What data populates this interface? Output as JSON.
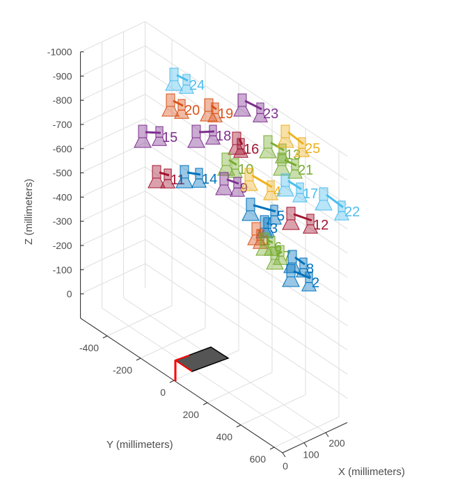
{
  "chart_data": {
    "type": "scatter",
    "projection": "3d",
    "xlabel": "X (millimeters)",
    "ylabel": "Y (millimeters)",
    "zlabel": "Z (millimeters)",
    "xlim": [
      0,
      300
    ],
    "ylim": [
      -560,
      650
    ],
    "zlim": [
      -1000,
      100
    ],
    "zdir": "reverse",
    "grid": true,
    "xticks": [
      "0",
      "100",
      "200"
    ],
    "yticks": [
      "-400",
      "-200",
      "0",
      "200",
      "400",
      "600"
    ],
    "zticks": [
      "-1000",
      "-900",
      "-800",
      "-700",
      "-600",
      "-500",
      "-400",
      "-300",
      "-200",
      "-100",
      "0"
    ],
    "pattern_color": "#555555",
    "origin_axis_color": "#ff0000",
    "cameras": [
      {
        "label": "24",
        "color": "#4DBEEE"
      },
      {
        "label": "20",
        "color": "#D95319"
      },
      {
        "label": "19",
        "color": "#D95319"
      },
      {
        "label": "23",
        "color": "#7E2F8E"
      },
      {
        "label": "15",
        "color": "#7E2F8E"
      },
      {
        "label": "18",
        "color": "#7E2F8E"
      },
      {
        "label": "16",
        "color": "#A2142F"
      },
      {
        "label": "13",
        "color": "#77AC30"
      },
      {
        "label": "25",
        "color": "#EDB120"
      },
      {
        "label": "21",
        "color": "#77AC30"
      },
      {
        "label": "10",
        "color": "#77AC30"
      },
      {
        "label": "11",
        "color": "#A2142F"
      },
      {
        "label": "14",
        "color": "#0072BD"
      },
      {
        "label": "9",
        "color": "#7E2F8E"
      },
      {
        "label": "4",
        "color": "#EDB120"
      },
      {
        "label": "17",
        "color": "#4DBEEE"
      },
      {
        "label": "22",
        "color": "#4DBEEE"
      },
      {
        "label": "5",
        "color": "#0072BD"
      },
      {
        "label": "12",
        "color": "#A2142F"
      },
      {
        "label": "3",
        "color": "#0072BD"
      },
      {
        "label": "1",
        "color": "#D95319"
      },
      {
        "label": "6",
        "color": "#77AC30"
      },
      {
        "label": "7",
        "color": "#77AC30"
      },
      {
        "label": "8",
        "color": "#0072BD"
      },
      {
        "label": "2",
        "color": "#0072BD"
      }
    ]
  }
}
